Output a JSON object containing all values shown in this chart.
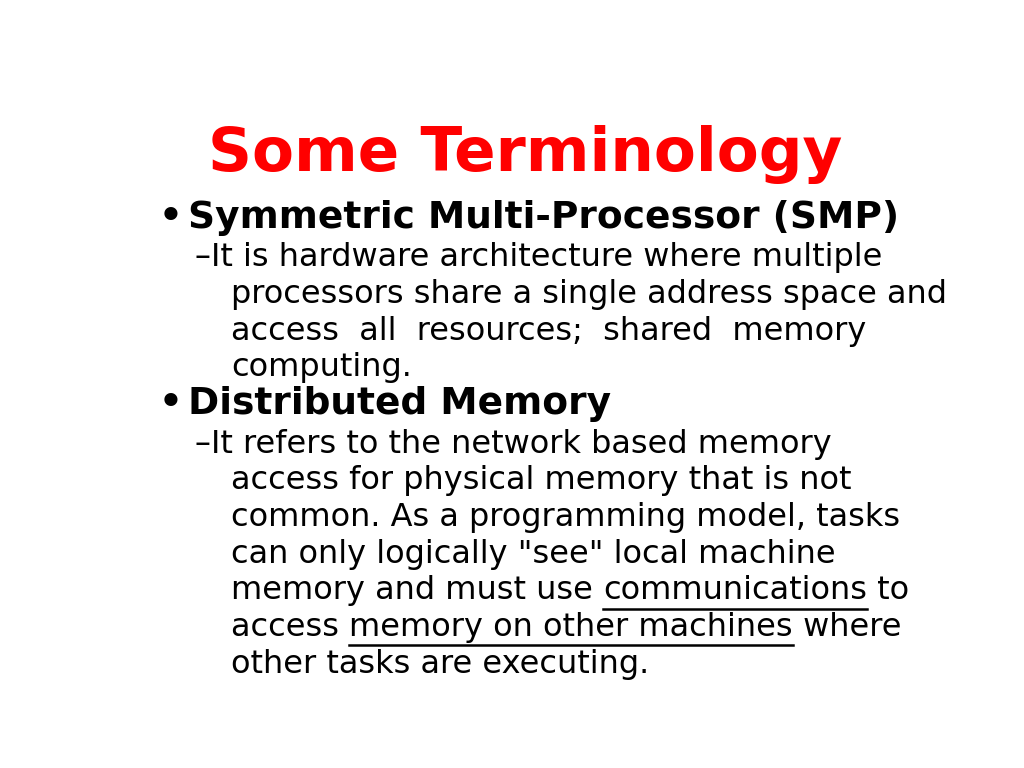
{
  "title": "Some Terminology",
  "title_color": "#FF0000",
  "title_fontsize": 44,
  "bg_color": "#FFFFFF",
  "bullet1_header": "Symmetric Multi-Processor (SMP)",
  "bullet2_header": "Distributed Memory",
  "text_color": "#000000",
  "header_fontsize": 27,
  "body_fontsize": 23,
  "lines_bullet1": [
    "–It is hardware architecture where multiple",
    "processors share a single address space and",
    "access  all  resources;  shared  memory",
    "computing."
  ],
  "lines_bullet2_plain": [
    "–It refers to the network based memory",
    "access for physical memory that is not",
    "common. As a programming model, tasks",
    "can only logically \"see\" local machine",
    "memory and must use ",
    "access ",
    "other tasks are executing."
  ],
  "ul_line5_pre": "memory and must use ",
  "ul_line5_ul": "communications",
  "ul_line5_post": " to",
  "ul_line6_pre": "access ",
  "ul_line6_ul": "memory on other machines",
  "ul_line6_post": " where"
}
